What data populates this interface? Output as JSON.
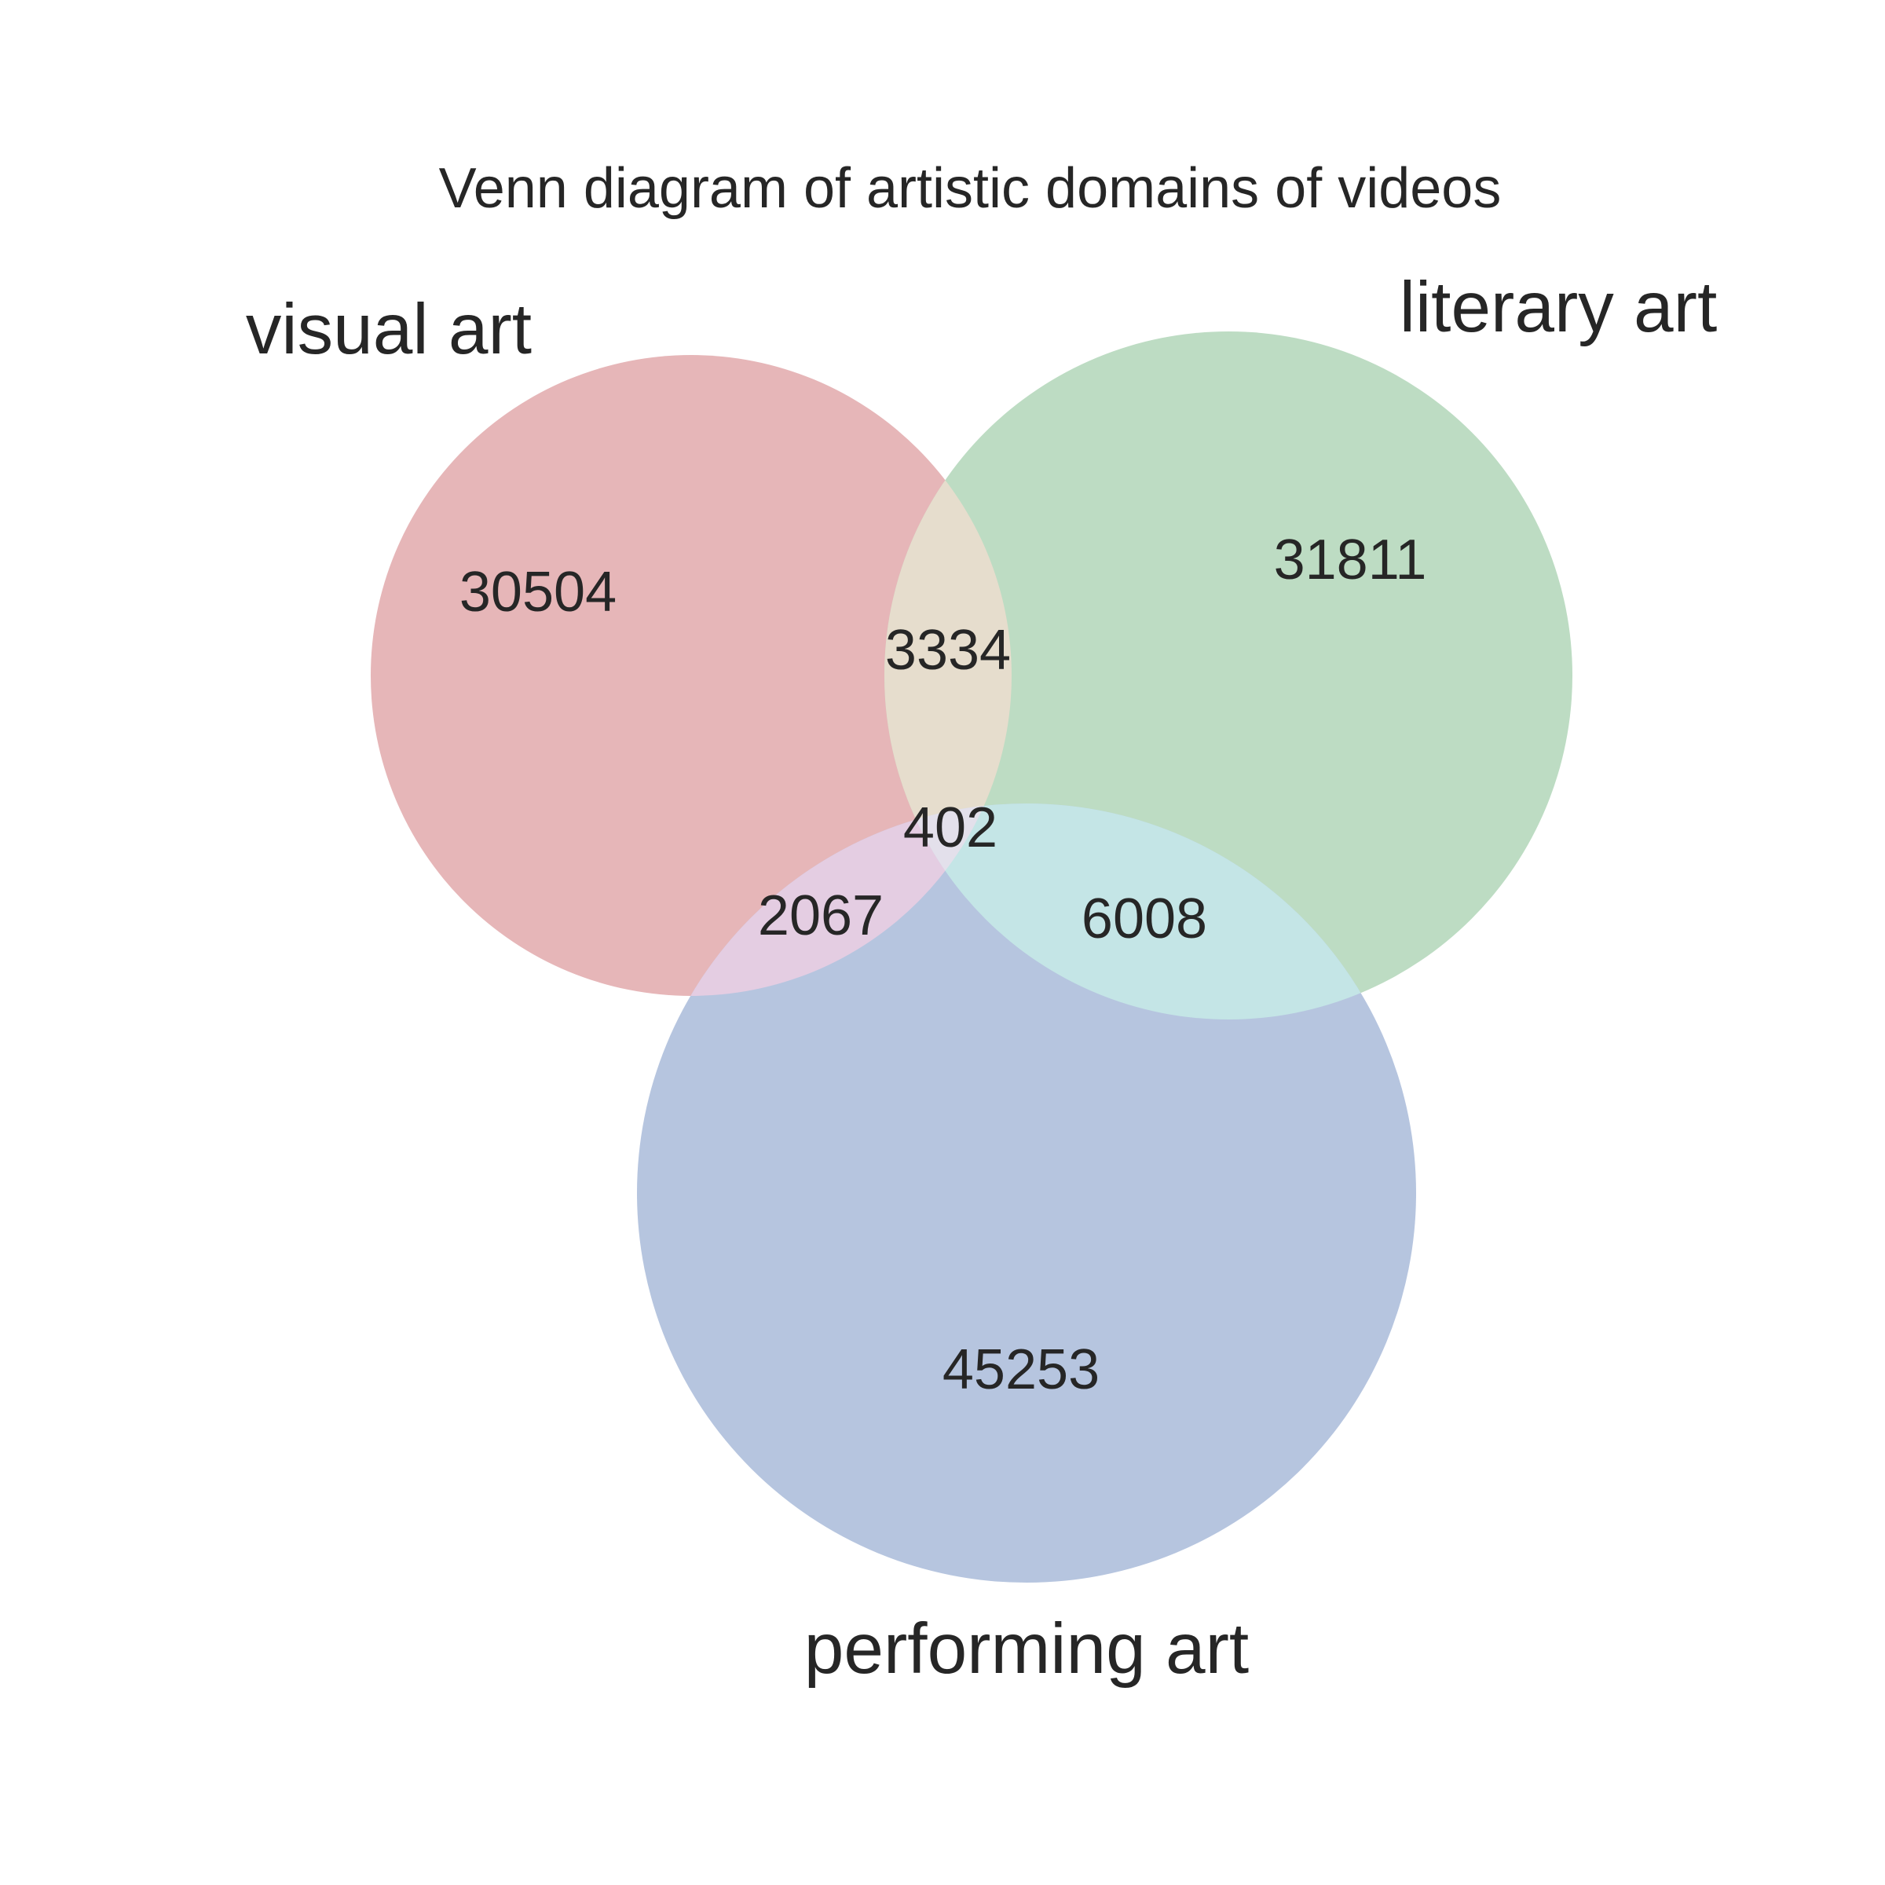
{
  "title": "Venn diagram of artistic domains of videos",
  "sets": [
    {
      "key": "visual",
      "label": "visual art",
      "color": "#e6b6b8"
    },
    {
      "key": "literary",
      "label": "literary art",
      "color": "#bddcc3"
    },
    {
      "key": "performing",
      "label": "performing art",
      "color": "#b6c5df"
    }
  ],
  "overlap_colors": {
    "visual_literary": "#e6ddcd",
    "visual_performing": "#e4cde2",
    "literary_performing": "#c4e5e6",
    "all": "#e3e0eb"
  },
  "regions": {
    "visual_only": "30504",
    "literary_only": "31811",
    "performing_only": "45253",
    "visual_literary": "3334",
    "visual_performing": "2067",
    "literary_performing": "6008",
    "all_three": "402"
  }
}
